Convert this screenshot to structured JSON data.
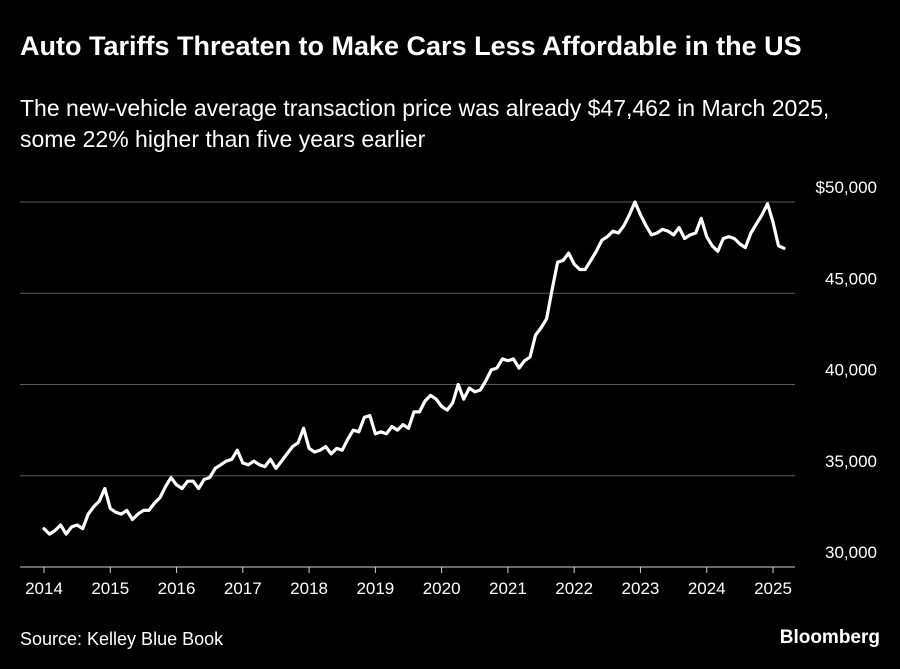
{
  "header": {
    "title": "Auto Tariffs Threaten to Make Cars Less Affordable in the US",
    "subtitle": "The new-vehicle average transaction price was already $47,462 in March 2025, some 22% higher than five years earlier"
  },
  "footer": {
    "source": "Source: Kelley Blue Book",
    "brand": "Bloomberg"
  },
  "colors": {
    "background": "#000000",
    "line": "#ffffff",
    "grid": "#5a5a5a",
    "text": "#ffffff"
  },
  "chart_data": {
    "type": "line",
    "title": "",
    "xlabel": "",
    "ylabel": "",
    "xlim": [
      2014,
      2025.3
    ],
    "ylim": [
      30000,
      50000
    ],
    "grid": true,
    "y_ticks": [
      {
        "value": 50000,
        "label": "$50,000"
      },
      {
        "value": 45000,
        "label": "45,000"
      },
      {
        "value": 40000,
        "label": "40,000"
      },
      {
        "value": 35000,
        "label": "35,000"
      },
      {
        "value": 30000,
        "label": "30,000"
      }
    ],
    "x_ticks": [
      {
        "value": 2014,
        "label": "2014"
      },
      {
        "value": 2015,
        "label": "2015"
      },
      {
        "value": 2016,
        "label": "2016"
      },
      {
        "value": 2017,
        "label": "2017"
      },
      {
        "value": 2018,
        "label": "2018"
      },
      {
        "value": 2019,
        "label": "2019"
      },
      {
        "value": 2020,
        "label": "2020"
      },
      {
        "value": 2021,
        "label": "2021"
      },
      {
        "value": 2022,
        "label": "2022"
      },
      {
        "value": 2023,
        "label": "2023"
      },
      {
        "value": 2024,
        "label": "2024"
      },
      {
        "value": 2025,
        "label": "2025"
      }
    ],
    "series": [
      {
        "name": "",
        "values": [
          32100,
          31800,
          32000,
          32300,
          31800,
          32200,
          32300,
          32100,
          32900,
          33300,
          33600,
          34300,
          33200,
          33000,
          32900,
          33100,
          32600,
          32900,
          33100,
          33100,
          33500,
          33800,
          34400,
          34900,
          34500,
          34300,
          34700,
          34700,
          34300,
          34800,
          34900,
          35400,
          35600,
          35800,
          35900,
          36400,
          35700,
          35600,
          35800,
          35600,
          35500,
          35900,
          35400,
          35800,
          36200,
          36600,
          36800,
          37600,
          36500,
          36300,
          36400,
          36600,
          36200,
          36500,
          36400,
          37000,
          37500,
          37400,
          38200,
          38300,
          37300,
          37400,
          37300,
          37700,
          37500,
          37800,
          37600,
          38500,
          38500,
          39100,
          39400,
          39200,
          38800,
          38600,
          39000,
          40000,
          39200,
          39800,
          39600,
          39700,
          40200,
          40800,
          40900,
          41400,
          41300,
          41400,
          40900,
          41300,
          41500,
          42700,
          43100,
          43600,
          45200,
          46700,
          46800,
          47200,
          46600,
          46300,
          46300,
          46800,
          47300,
          47900,
          48100,
          48400,
          48300,
          48700,
          49300,
          50000,
          49300,
          48700,
          48200,
          48300,
          48500,
          48400,
          48200,
          48600,
          48000,
          48200,
          48300,
          49100,
          48100,
          47600,
          47300,
          48000,
          48100,
          48000,
          47700,
          47500,
          48300,
          48800,
          49300,
          49900,
          48900,
          47600,
          47462
        ]
      }
    ]
  }
}
